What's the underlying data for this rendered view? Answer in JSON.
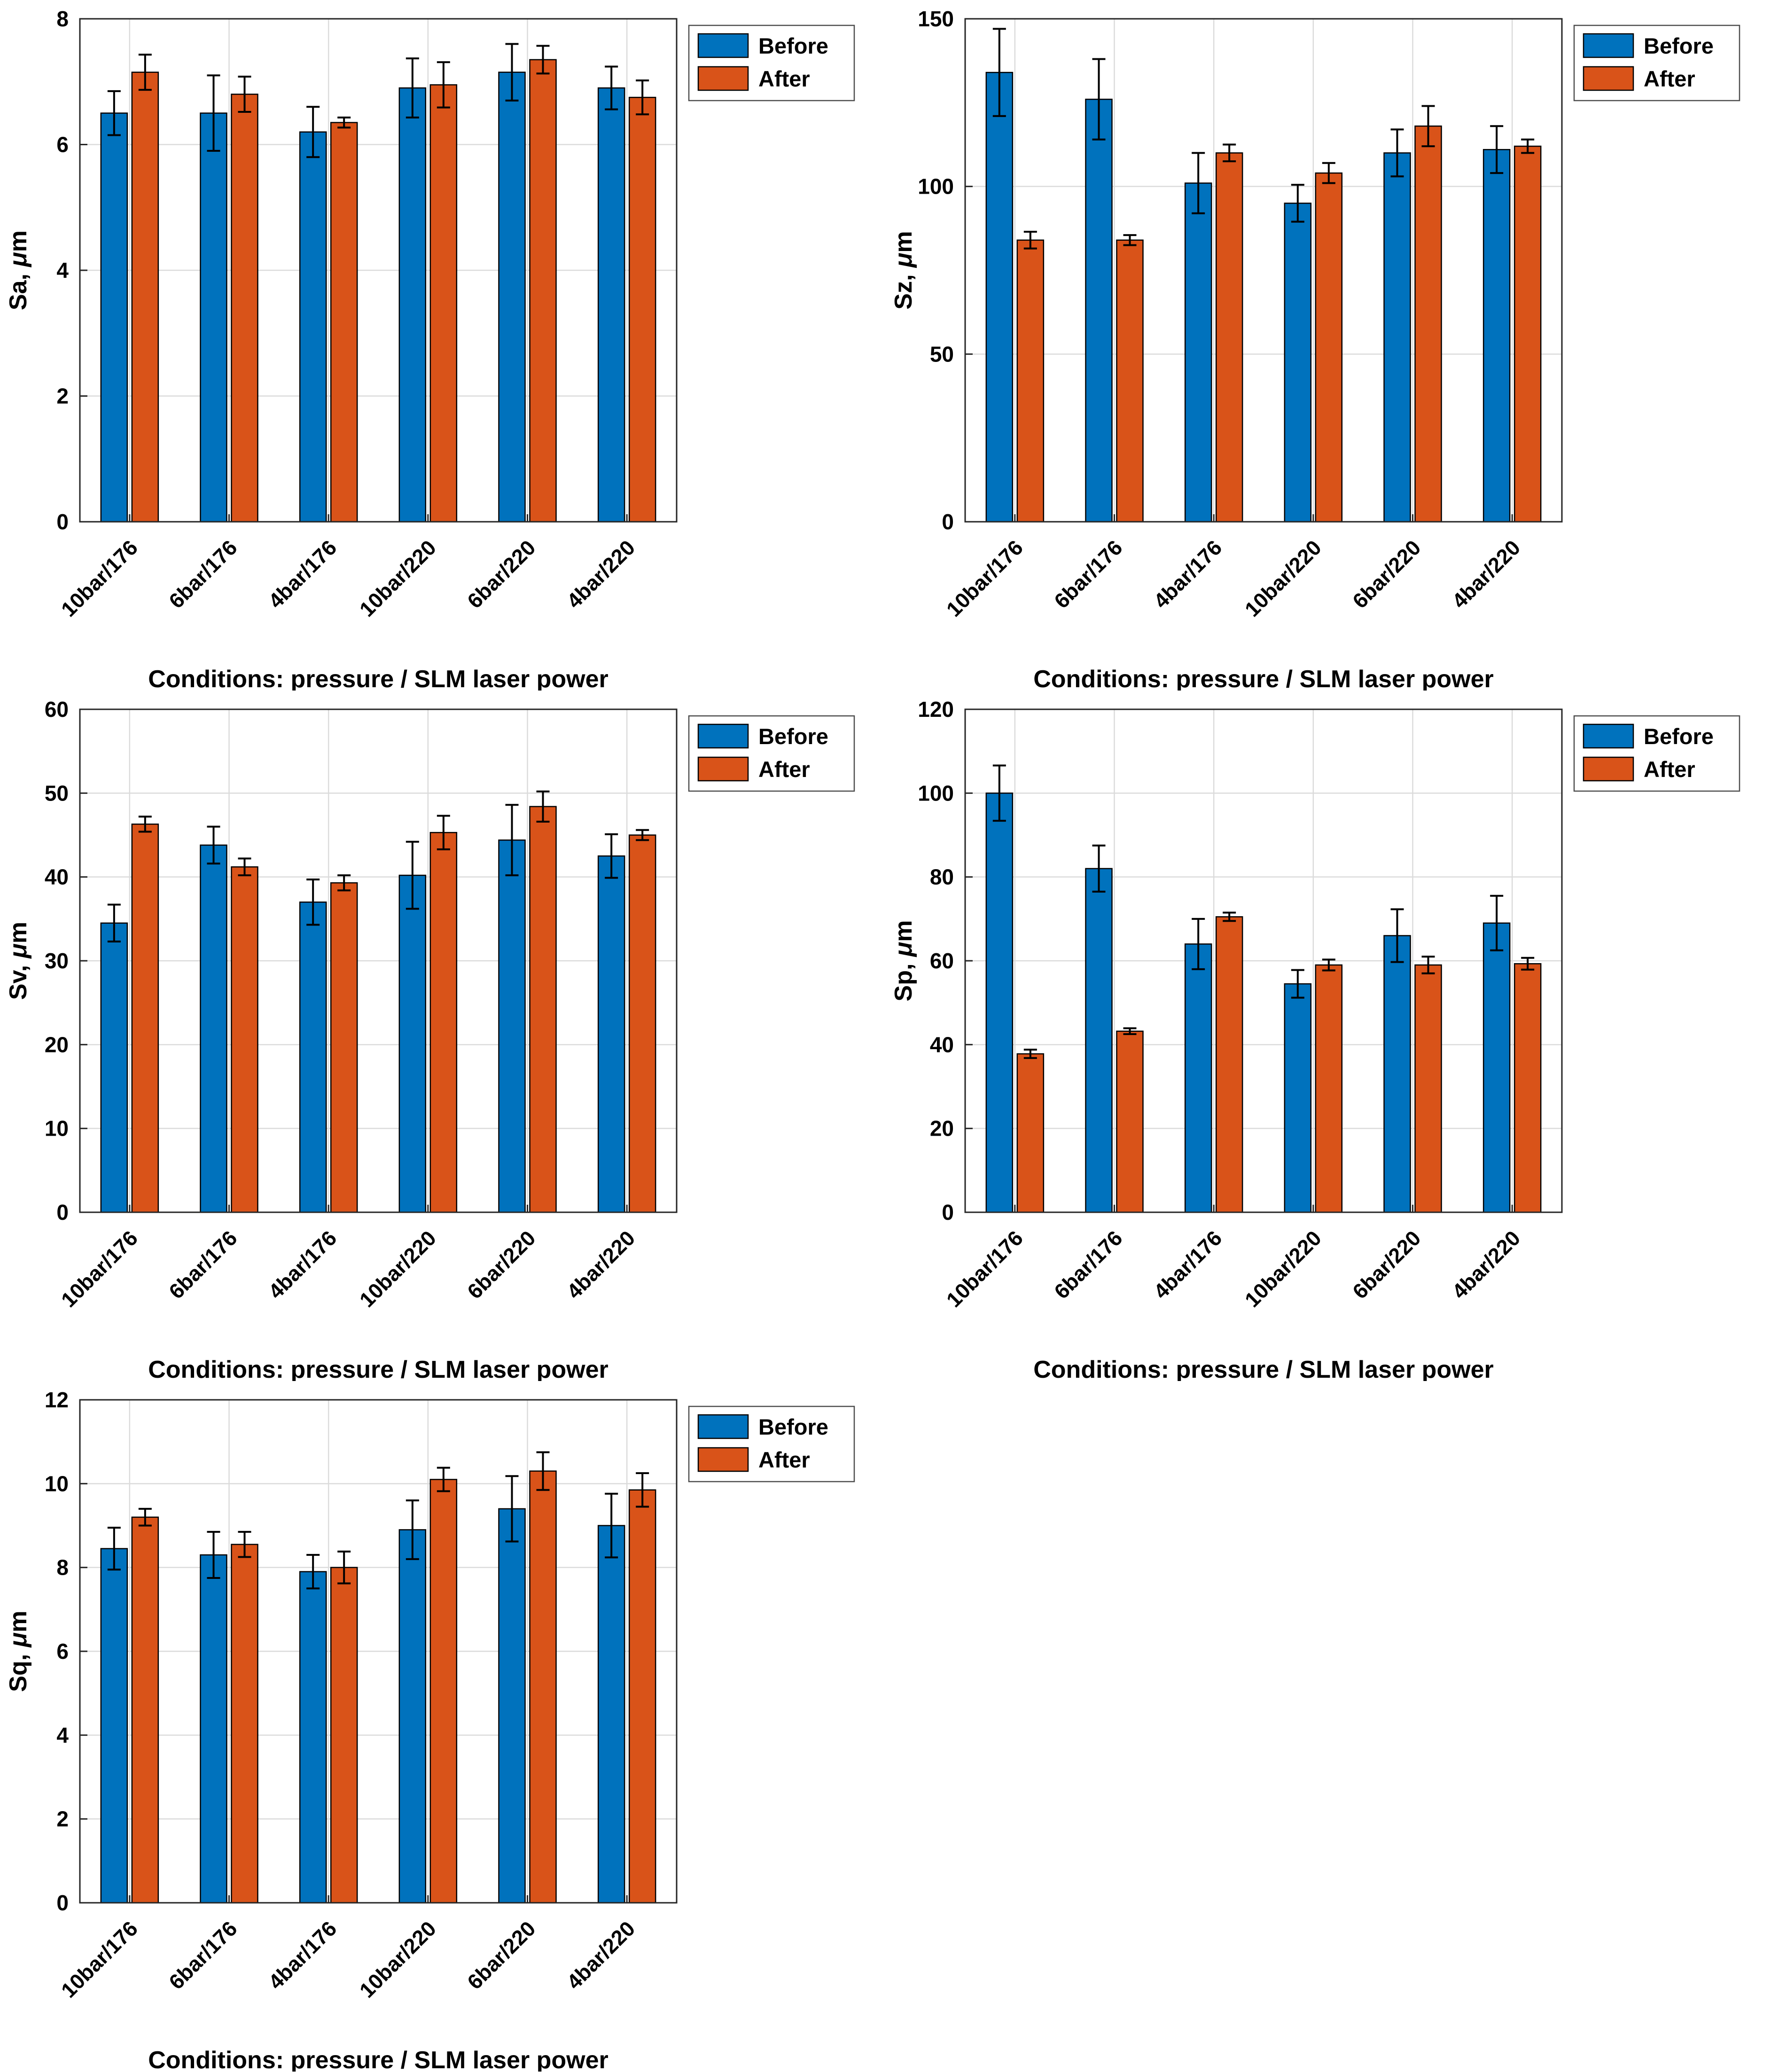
{
  "page": {
    "background": "#ffffff",
    "layout": "2-column by 3-row grid of bar charts, last cell empty"
  },
  "colors": {
    "before": "#0072BD",
    "after": "#D95319",
    "bar_edge": "#000000",
    "axis": "#262626",
    "grid": "#DBDBDB",
    "error_bar": "#000000",
    "legend_edge": "#4d4d4d",
    "text": "#000000"
  },
  "shared": {
    "xlabel": "Conditions: pressure / SLM laser power",
    "categories": [
      "10bar/176",
      "6bar/176",
      "4bar/176",
      "10bar/220",
      "6bar/220",
      "4bar/220"
    ],
    "legend_labels": [
      "Before",
      "After"
    ],
    "legend_position": "top-right-outside"
  },
  "chart_data": [
    {
      "type": "bar",
      "title": "",
      "ylabel": "Sa, μm",
      "ylabel_parts": [
        {
          "text": "Sa, ",
          "italic": false
        },
        {
          "text": "μ",
          "italic": true
        },
        {
          "text": "m",
          "italic": false
        }
      ],
      "xlabel": "Conditions: pressure / SLM laser power",
      "ylim": [
        0,
        8
      ],
      "yticks": [
        0,
        2,
        4,
        6,
        8
      ],
      "grid": true,
      "legend": [
        "Before",
        "After"
      ],
      "categories": [
        "10bar/176",
        "6bar/176",
        "4bar/176",
        "10bar/220",
        "6bar/220",
        "4bar/220"
      ],
      "series": [
        {
          "name": "Before",
          "color": "#0072BD",
          "values": [
            6.5,
            6.5,
            6.2,
            6.9,
            7.15,
            6.9
          ],
          "errors": [
            0.35,
            0.6,
            0.4,
            0.47,
            0.45,
            0.34
          ]
        },
        {
          "name": "After",
          "color": "#D95319",
          "values": [
            7.15,
            6.8,
            6.35,
            6.95,
            7.35,
            6.75
          ],
          "errors": [
            0.28,
            0.28,
            0.08,
            0.36,
            0.22,
            0.27
          ]
        }
      ]
    },
    {
      "type": "bar",
      "title": "",
      "ylabel": "Sz, μm",
      "ylabel_parts": [
        {
          "text": "Sz, ",
          "italic": false
        },
        {
          "text": "μ",
          "italic": true
        },
        {
          "text": "m",
          "italic": false
        }
      ],
      "xlabel": "Conditions: pressure / SLM laser power",
      "ylim": [
        0,
        150
      ],
      "yticks": [
        0,
        50,
        100,
        150
      ],
      "grid": true,
      "legend": [
        "Before",
        "After"
      ],
      "categories": [
        "10bar/176",
        "6bar/176",
        "4bar/176",
        "10bar/220",
        "6bar/220",
        "4bar/220"
      ],
      "series": [
        {
          "name": "Before",
          "color": "#0072BD",
          "values": [
            134,
            126,
            101,
            95,
            110,
            111
          ],
          "errors": [
            13,
            12,
            9,
            5.5,
            7,
            7
          ]
        },
        {
          "name": "After",
          "color": "#D95319",
          "values": [
            84,
            84,
            110,
            104,
            118,
            112
          ],
          "errors": [
            2.5,
            1.5,
            2.5,
            3,
            6,
            2
          ]
        }
      ]
    },
    {
      "type": "bar",
      "title": "",
      "ylabel": "Sv, μm",
      "ylabel_parts": [
        {
          "text": "Sv, ",
          "italic": false
        },
        {
          "text": "μ",
          "italic": true
        },
        {
          "text": "m",
          "italic": false
        }
      ],
      "xlabel": "Conditions: pressure / SLM laser power",
      "ylim": [
        0,
        60
      ],
      "yticks": [
        0,
        10,
        20,
        30,
        40,
        50,
        60
      ],
      "grid": true,
      "legend": [
        "Before",
        "After"
      ],
      "categories": [
        "10bar/176",
        "6bar/176",
        "4bar/176",
        "10bar/220",
        "6bar/220",
        "4bar/220"
      ],
      "series": [
        {
          "name": "Before",
          "color": "#0072BD",
          "values": [
            34.5,
            43.8,
            37.0,
            40.2,
            44.4,
            42.5
          ],
          "errors": [
            2.2,
            2.2,
            2.7,
            4.0,
            4.2,
            2.6
          ]
        },
        {
          "name": "After",
          "color": "#D95319",
          "values": [
            46.3,
            41.2,
            39.3,
            45.3,
            48.4,
            45.0
          ],
          "errors": [
            0.9,
            1.0,
            0.9,
            2.0,
            1.8,
            0.6
          ]
        }
      ]
    },
    {
      "type": "bar",
      "title": "",
      "ylabel": "Sp, μm",
      "ylabel_parts": [
        {
          "text": "Sp, ",
          "italic": false
        },
        {
          "text": "μ",
          "italic": true
        },
        {
          "text": "m",
          "italic": false
        }
      ],
      "xlabel": "Conditions: pressure / SLM laser power",
      "ylim": [
        0,
        120
      ],
      "yticks": [
        0,
        20,
        40,
        60,
        80,
        100,
        120
      ],
      "grid": true,
      "legend": [
        "Before",
        "After"
      ],
      "categories": [
        "10bar/176",
        "6bar/176",
        "4bar/176",
        "10bar/220",
        "6bar/220",
        "4bar/220"
      ],
      "series": [
        {
          "name": "Before",
          "color": "#0072BD",
          "values": [
            100,
            82,
            64,
            54.5,
            66,
            69
          ],
          "errors": [
            6.6,
            5.5,
            6,
            3.3,
            6.3,
            6.5
          ]
        },
        {
          "name": "After",
          "color": "#D95319",
          "values": [
            37.8,
            43.2,
            70.5,
            59,
            59,
            59.3
          ],
          "errors": [
            1,
            0.7,
            1,
            1.3,
            2,
            1.4
          ]
        }
      ]
    },
    {
      "type": "bar",
      "title": "",
      "ylabel": "Sq, μm",
      "ylabel_parts": [
        {
          "text": "Sq, ",
          "italic": false
        },
        {
          "text": "μ",
          "italic": true
        },
        {
          "text": "m",
          "italic": false
        }
      ],
      "xlabel": "Conditions: pressure / SLM laser power",
      "ylim": [
        0,
        12
      ],
      "yticks": [
        0,
        2,
        4,
        6,
        8,
        10,
        12
      ],
      "grid": true,
      "legend": [
        "Before",
        "After"
      ],
      "categories": [
        "10bar/176",
        "6bar/176",
        "4bar/176",
        "10bar/220",
        "6bar/220",
        "4bar/220"
      ],
      "series": [
        {
          "name": "Before",
          "color": "#0072BD",
          "values": [
            8.45,
            8.3,
            7.9,
            8.9,
            9.4,
            9.0
          ],
          "errors": [
            0.5,
            0.55,
            0.4,
            0.7,
            0.78,
            0.76
          ]
        },
        {
          "name": "After",
          "color": "#D95319",
          "values": [
            9.2,
            8.55,
            8.0,
            10.1,
            10.3,
            9.85
          ],
          "errors": [
            0.2,
            0.3,
            0.38,
            0.28,
            0.45,
            0.4
          ]
        }
      ]
    }
  ]
}
